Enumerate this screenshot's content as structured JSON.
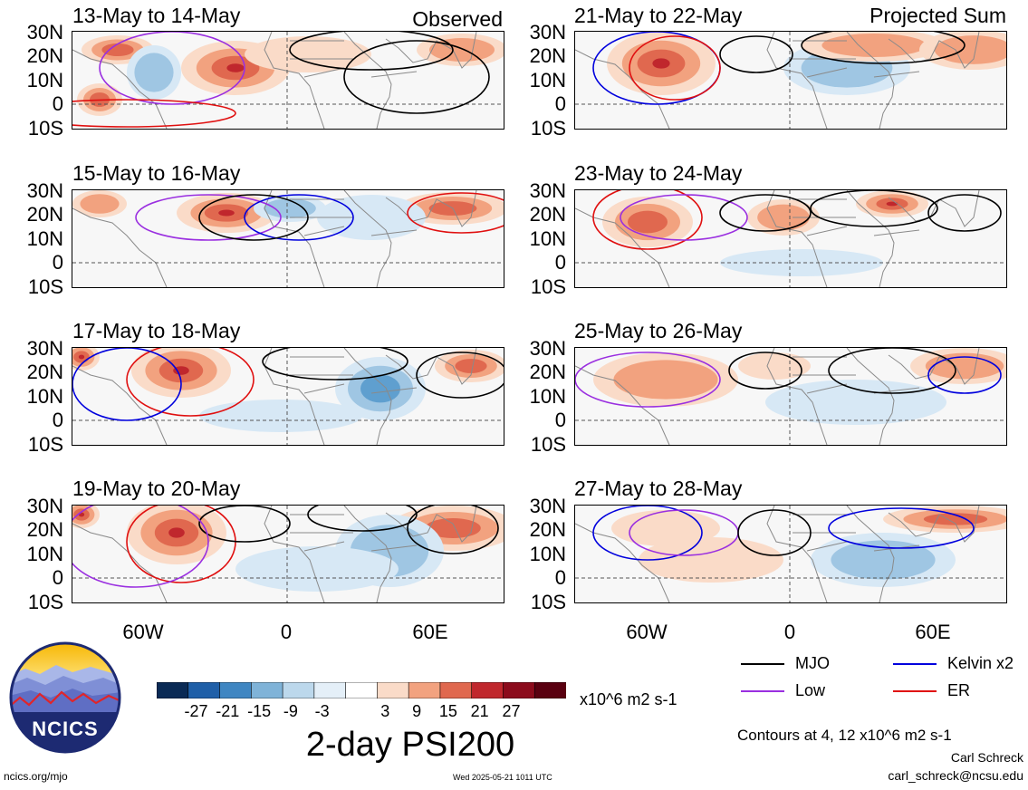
{
  "panels": [
    {
      "title": "13-May to 14-May",
      "corner": "Observed"
    },
    {
      "title": "15-May to 16-May",
      "corner": ""
    },
    {
      "title": "17-May to 18-May",
      "corner": ""
    },
    {
      "title": "19-May to 20-May",
      "corner": ""
    },
    {
      "title": "21-May to 22-May",
      "corner": "Projected Sum"
    },
    {
      "title": "23-May to 24-May",
      "corner": ""
    },
    {
      "title": "25-May to 26-May",
      "corner": ""
    },
    {
      "title": "27-May to 28-May",
      "corner": ""
    }
  ],
  "lat_labels": [
    "30N",
    "20N",
    "10N",
    "0",
    "10S"
  ],
  "lon_labels": [
    "60W",
    "0",
    "60E"
  ],
  "colorbar": {
    "ticks": [
      "-27",
      "-21",
      "-15",
      "-9",
      "-3",
      "3",
      "9",
      "15",
      "21",
      "27"
    ],
    "units": "x10^6 m2 s-1",
    "colors": [
      "#0a2a55",
      "#1f5fa8",
      "#3f86c2",
      "#7fb3d8",
      "#bcd8ec",
      "#e4eff8",
      "#ffffff",
      "#fadbc8",
      "#f2a27f",
      "#e0684f",
      "#c0272d",
      "#8c0b1c",
      "#5a0010"
    ]
  },
  "title": "2-day PSI200",
  "legend": [
    {
      "label": "MJO",
      "color": "#000000"
    },
    {
      "label": "Kelvin x2",
      "color": "#0000dd"
    },
    {
      "label": "Low",
      "color": "#9a2fe0"
    },
    {
      "label": "ER",
      "color": "#e01010"
    }
  ],
  "contour_note": "Contours at 4, 12 x10^6 m2 s-1",
  "author": "Carl Schreck",
  "email": "carl_schreck@ncsu.edu",
  "site": "ncics.org/mjo",
  "timestamp": "Wed 2025-05-21 1011 UTC",
  "logo_text": "NCICS"
}
